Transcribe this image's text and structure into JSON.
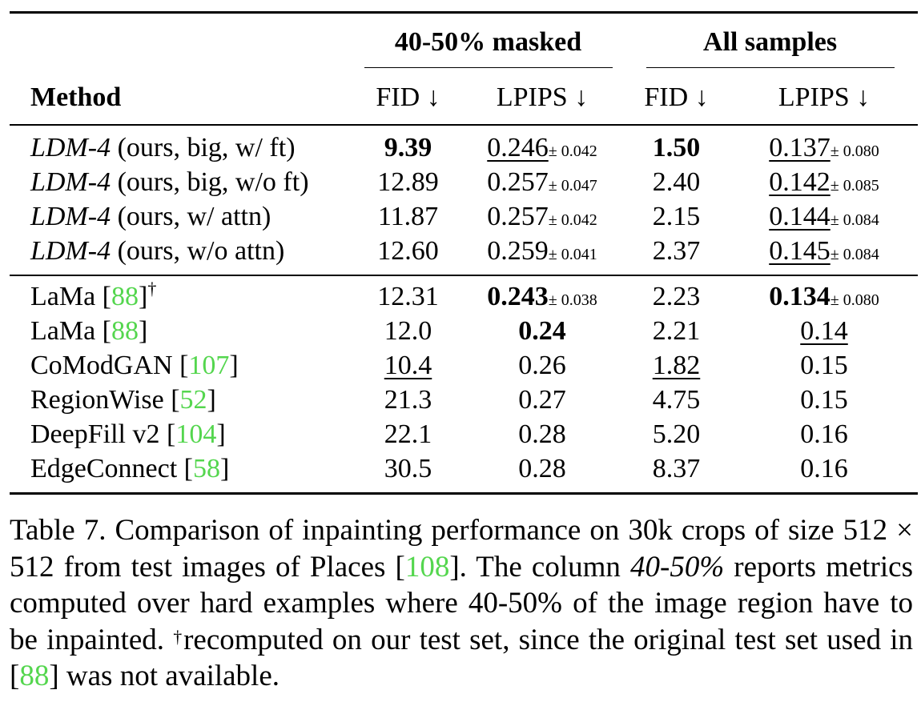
{
  "table": {
    "group_headers": [
      "40-50% masked",
      "All samples"
    ],
    "method_header": "Method",
    "sub_headers": [
      "FID ↓",
      "LPIPS ↓",
      "FID ↓",
      "LPIPS ↓"
    ],
    "rows_ours": [
      {
        "model": "LDM-4",
        "method_suffix": " (ours, big, w/ ft)",
        "fid1": "9.39",
        "lpips1": "0.246",
        "pm1": "± 0.042",
        "fid2": "1.50",
        "lpips2": "0.137",
        "pm2": "± 0.080"
      },
      {
        "model": "LDM-4",
        "method_suffix": " (ours, big, w/o ft)",
        "fid1": "12.89",
        "lpips1": "0.257",
        "pm1": "± 0.047",
        "fid2": "2.40",
        "lpips2": "0.142",
        "pm2": "± 0.085"
      },
      {
        "model": "LDM-4",
        "method_suffix": " (ours, w/ attn)",
        "fid1": "11.87",
        "lpips1": "0.257",
        "pm1": "± 0.042",
        "fid2": "2.15",
        "lpips2": "0.144",
        "pm2": "± 0.084"
      },
      {
        "model": "LDM-4",
        "method_suffix": " (ours, w/o attn)",
        "fid1": "12.60",
        "lpips1": "0.259",
        "pm1": "± 0.041",
        "fid2": "2.37",
        "lpips2": "0.145",
        "pm2": "± 0.084"
      }
    ],
    "rows_baselines": [
      {
        "method": "LaMa [",
        "cite": "88",
        "close": "]",
        "sup": "†",
        "fid1": "12.31",
        "lpips1": "0.243",
        "pm1": "± 0.038",
        "fid2": "2.23",
        "lpips2": "0.134",
        "pm2": "± 0.080"
      },
      {
        "method": "LaMa [",
        "cite": "88",
        "close": "]",
        "fid1": "12.0",
        "lpips1": "0.24",
        "fid2": "2.21",
        "lpips2": "0.14"
      },
      {
        "method": "CoModGAN [",
        "cite": "107",
        "close": "]",
        "fid1": "10.4",
        "lpips1": "0.26",
        "fid2": "1.82",
        "lpips2": "0.15"
      },
      {
        "method": "RegionWise [",
        "cite": "52",
        "close": "]",
        "fid1": "21.3",
        "lpips1": "0.27",
        "fid2": "4.75",
        "lpips2": "0.15"
      },
      {
        "method": "DeepFill v2 [",
        "cite": "104",
        "close": "]",
        "fid1": "22.1",
        "lpips1": "0.28",
        "fid2": "5.20",
        "lpips2": "0.16"
      },
      {
        "method": "EdgeConnect [",
        "cite": "58",
        "close": "]",
        "fid1": "30.5",
        "lpips1": "0.28",
        "fid2": "8.37",
        "lpips2": "0.16"
      }
    ]
  },
  "caption": {
    "part1": "Table 7.  Comparison of inpainting performance on 30k crops of size 512 × 512 from test images of Places [",
    "cite1": "108",
    "part2": "]. The column ",
    "italic1": "40-50%",
    "part3": " reports metrics computed over hard examples where 40-50% of the image region have to be inpainted. ",
    "dagger": "†",
    "part4": "recomputed on our test set, since the original test set used in [",
    "cite2": "88",
    "part5": "] was not available."
  }
}
